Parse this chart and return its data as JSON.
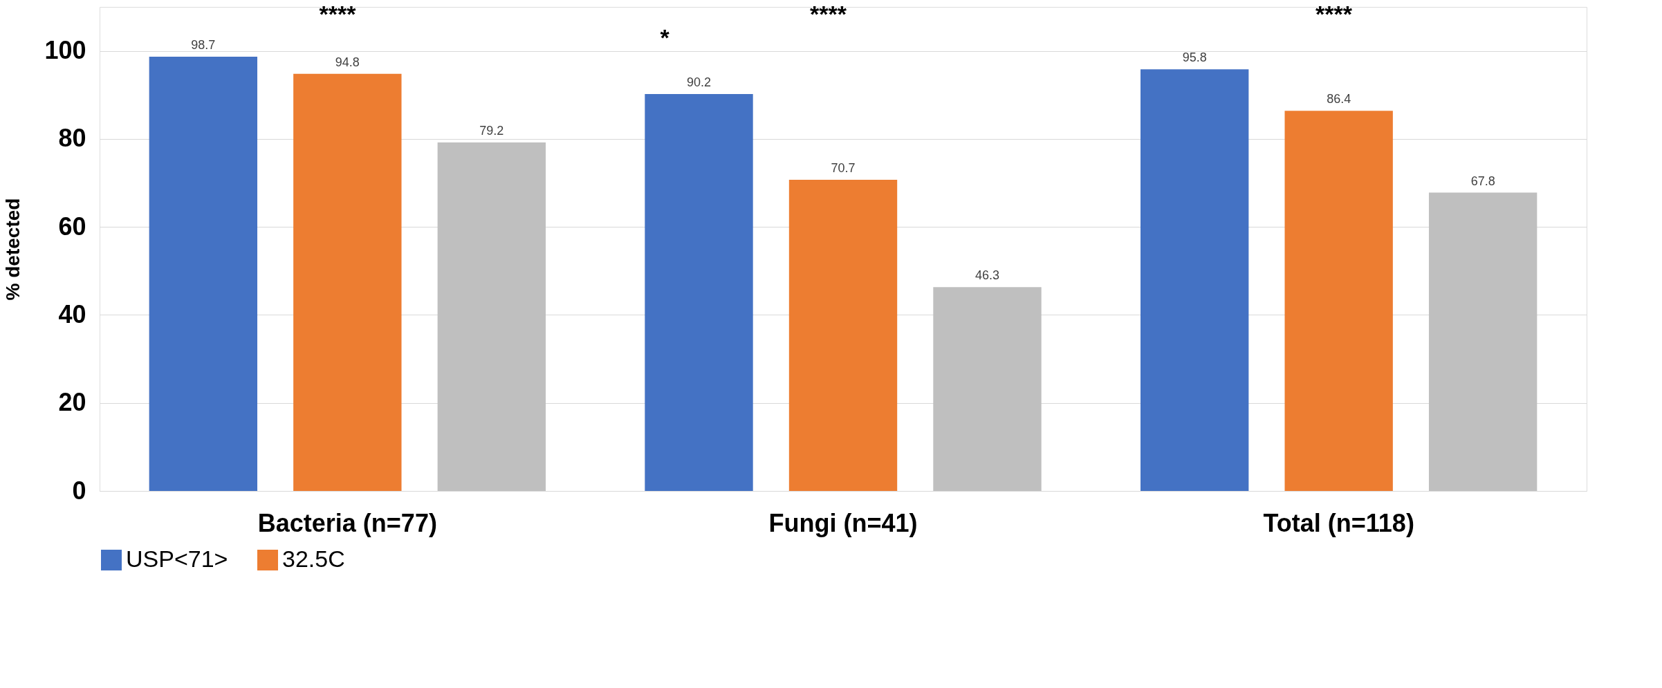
{
  "chart_data": {
    "type": "bar",
    "ylabel": "% detected",
    "categories": [
      "Bacteria (n=77)",
      "Fungi (n=41)",
      "Total (n=118)"
    ],
    "series": [
      {
        "name": "USP<71>",
        "color": "#4472c4",
        "values": [
          98.7,
          90.2,
          95.8
        ]
      },
      {
        "name": "32.5C",
        "color": "#ed7d31",
        "values": [
          94.8,
          70.7,
          86.4
        ]
      },
      {
        "color": "#bfbfbf",
        "values": [
          79.2,
          46.3,
          67.8
        ]
      }
    ],
    "ylim": [
      0,
      110
    ],
    "yticks": [
      0,
      20,
      40,
      60,
      80,
      100
    ],
    "grid": "y",
    "legend": "bottom",
    "data_labels": true,
    "annotations": [
      "****",
      "*",
      "****",
      "****"
    ]
  }
}
